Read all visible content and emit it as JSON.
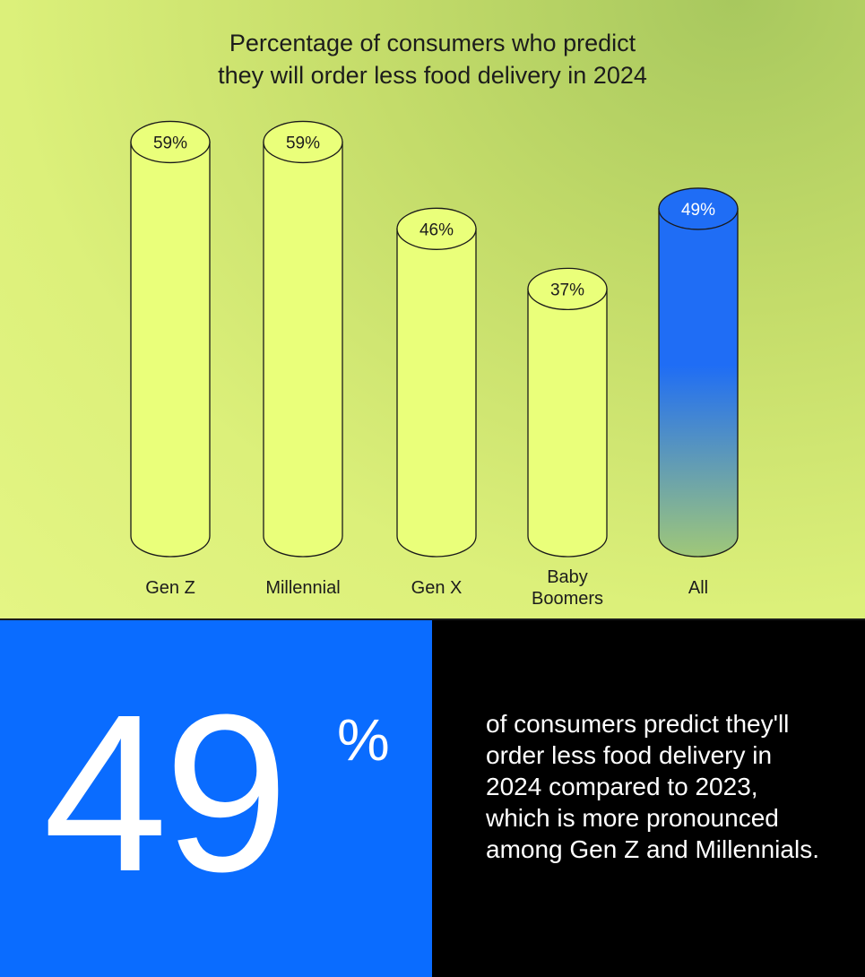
{
  "chart_data": {
    "type": "bar",
    "title_lines": [
      "Percentage of consumers who predict",
      "they will order less food delivery in 2024"
    ],
    "categories": [
      [
        "Gen Z"
      ],
      [
        "Millennial"
      ],
      [
        "Gen X"
      ],
      [
        "Baby",
        "Boomers"
      ],
      [
        "All"
      ]
    ],
    "values": [
      59,
      59,
      46,
      37,
      49
    ],
    "data_labels": [
      "59%",
      "59%",
      "46%",
      "37%",
      "49%"
    ],
    "highlight_index": 4,
    "colors": {
      "bar": "#eaff7a",
      "bar_stroke": "#1a1a1a",
      "highlight_top": "#1f6df5",
      "highlight_bottom": "#a0c878",
      "label_text": "#1c1c1c",
      "highlight_label_text": "#ffffff"
    }
  },
  "stat": {
    "value": "49",
    "unit": "%",
    "description": "of consumers predict they'll order less food delivery in 2024 compared to 2023, which is more pronounced among Gen Z and Millennials."
  },
  "colors": {
    "stat_panel_bg": "#0a6cff",
    "text_panel_bg": "#000000"
  }
}
